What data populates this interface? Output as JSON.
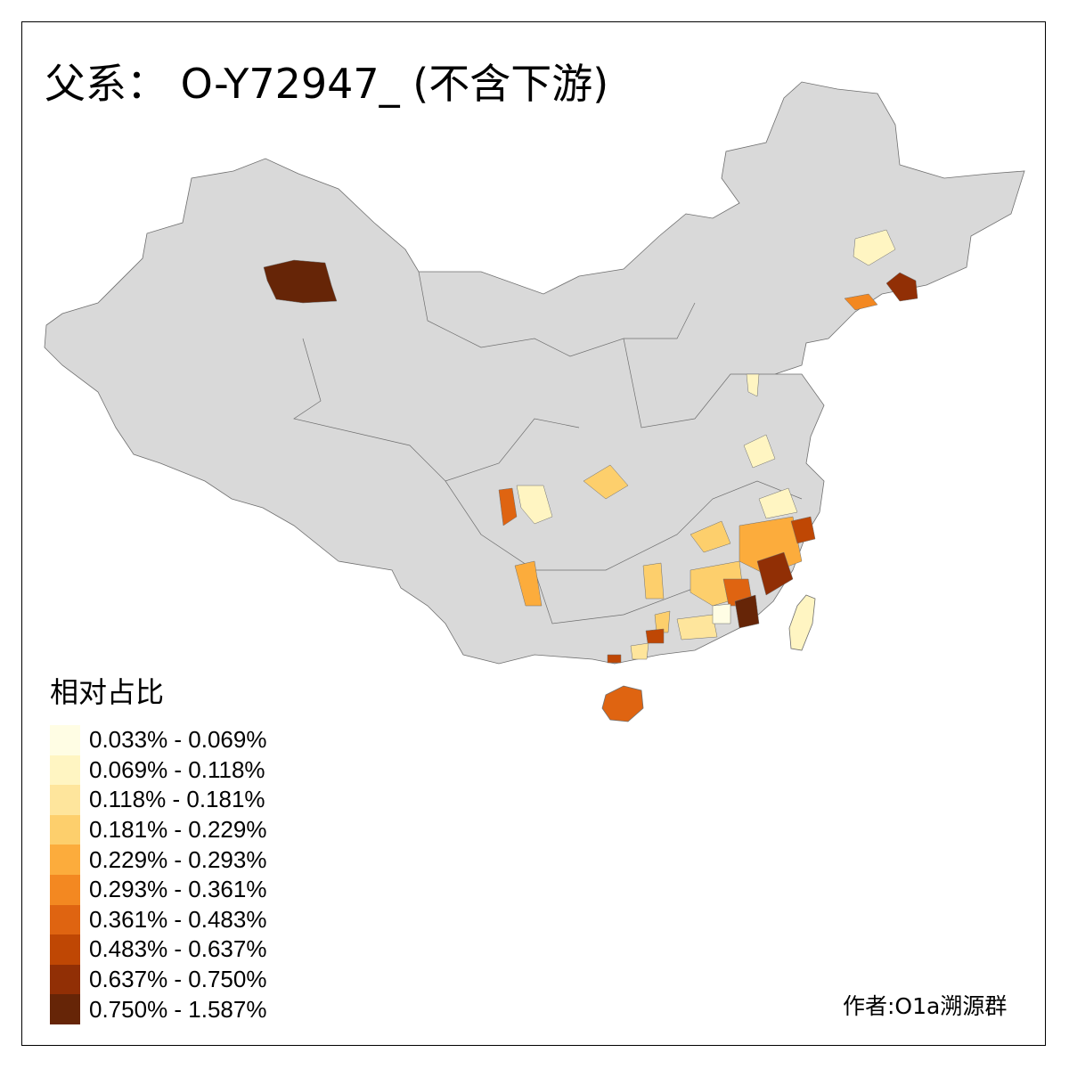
{
  "title": "父系： O-Y72947_ (不含下游)",
  "legend": {
    "title": "相对占比",
    "classes": [
      {
        "label": "0.033% - 0.069%",
        "color": "#fffde4"
      },
      {
        "label": "0.069% - 0.118%",
        "color": "#fff5c2"
      },
      {
        "label": "0.118% - 0.181%",
        "color": "#fee59c"
      },
      {
        "label": "0.181% - 0.229%",
        "color": "#fdcf6c"
      },
      {
        "label": "0.229% - 0.293%",
        "color": "#fcac3c"
      },
      {
        "label": "0.293% - 0.361%",
        "color": "#f38821"
      },
      {
        "label": "0.361% - 0.483%",
        "color": "#df6411"
      },
      {
        "label": "0.483% - 0.637%",
        "color": "#bf4704"
      },
      {
        "label": "0.637% - 0.750%",
        "color": "#912f05"
      },
      {
        "label": "0.750% - 1.587%",
        "color": "#662507"
      }
    ]
  },
  "author": "作者:O1a溯源群",
  "colors": {
    "base_land": "#d9d9d9",
    "border": "#7a7a7a"
  }
}
